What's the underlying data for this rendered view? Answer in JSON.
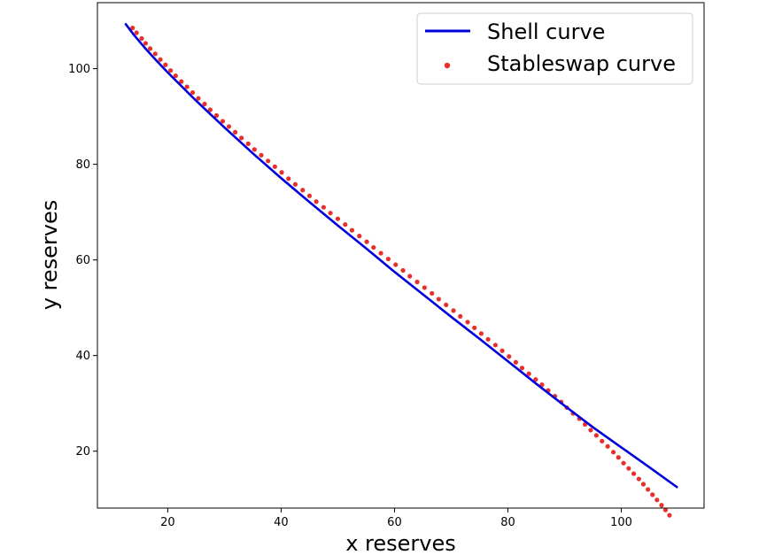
{
  "chart_data": {
    "type": "line",
    "xlabel": "x reserves",
    "ylabel": "y reserves",
    "xlim": [
      7.6,
      114.6
    ],
    "ylim": [
      8.1,
      113.8
    ],
    "xticks": [
      20,
      40,
      60,
      80,
      100
    ],
    "yticks": [
      20,
      40,
      60,
      80,
      100
    ],
    "grid": false,
    "legend_position": "top-right",
    "series": [
      {
        "name": "Shell curve",
        "kind": "line",
        "color": "#0000dd",
        "x": [
          12.6,
          14,
          16,
          18,
          20,
          25,
          30,
          35,
          40,
          45,
          50,
          55,
          60,
          65,
          70,
          75,
          80,
          85,
          90,
          95,
          100,
          105,
          109.8
        ],
        "y": [
          109.3,
          107.1,
          104.3,
          101.7,
          99.2,
          93.3,
          87.7,
          82.3,
          77.1,
          72.1,
          67.2,
          62.4,
          57.5,
          52.8,
          48.1,
          43.5,
          38.8,
          34.1,
          29.5,
          25.0,
          20.8,
          16.6,
          12.5
        ]
      },
      {
        "name": "Stableswap curve",
        "kind": "scatter",
        "color": "#e8302a",
        "x": [
          13.8,
          14.5,
          15.4,
          16.1,
          16.9,
          17.8,
          18.7,
          19.6,
          20.5,
          21.4,
          22.4,
          23.4,
          24.4,
          25.4,
          26.5,
          27.5,
          28.6,
          29.7,
          30.8,
          31.9,
          33.0,
          34.2,
          35.3,
          36.5,
          37.7,
          38.9,
          40.1,
          41.3,
          42.5,
          43.8,
          45.0,
          46.2,
          47.5,
          48.7,
          50.0,
          51.3,
          52.5,
          53.8,
          55.1,
          56.3,
          57.6,
          58.9,
          60.2,
          61.5,
          62.7,
          64.0,
          65.3,
          66.6,
          67.8,
          69.1,
          70.4,
          71.6,
          72.9,
          74.1,
          75.3,
          76.5,
          77.8,
          79.0,
          80.2,
          81.4,
          82.5,
          83.7,
          84.9,
          86.0,
          87.1,
          88.3,
          89.4,
          90.4,
          91.5,
          92.6,
          93.6,
          94.6,
          95.6,
          96.6,
          97.6,
          98.6,
          99.5,
          100.4,
          101.3,
          102.2,
          103.1,
          103.9,
          104.7,
          105.5,
          106.3,
          107.1,
          107.8,
          108.5
        ],
        "y": [
          108.5,
          107.5,
          106.3,
          105.3,
          104.2,
          103.1,
          101.9,
          100.8,
          99.6,
          98.5,
          97.3,
          96.2,
          95.0,
          93.8,
          92.6,
          91.4,
          90.2,
          89.0,
          87.9,
          86.7,
          85.5,
          84.3,
          83.1,
          81.9,
          80.7,
          79.5,
          78.3,
          77.0,
          75.8,
          74.6,
          73.4,
          72.2,
          71.0,
          69.8,
          68.6,
          67.4,
          66.2,
          65.0,
          63.8,
          62.6,
          61.4,
          60.2,
          59.0,
          57.8,
          56.6,
          55.4,
          54.2,
          53.0,
          51.8,
          50.6,
          49.4,
          48.2,
          47.0,
          45.8,
          44.6,
          43.4,
          42.2,
          41.0,
          39.8,
          38.6,
          37.4,
          36.2,
          35.0,
          33.9,
          32.7,
          31.5,
          30.3,
          29.1,
          27.9,
          26.8,
          25.6,
          24.4,
          23.3,
          22.1,
          21.0,
          19.8,
          18.7,
          17.5,
          16.4,
          15.3,
          14.2,
          13.1,
          12.0,
          10.9,
          9.8,
          8.7,
          7.7,
          6.6
        ]
      }
    ]
  }
}
